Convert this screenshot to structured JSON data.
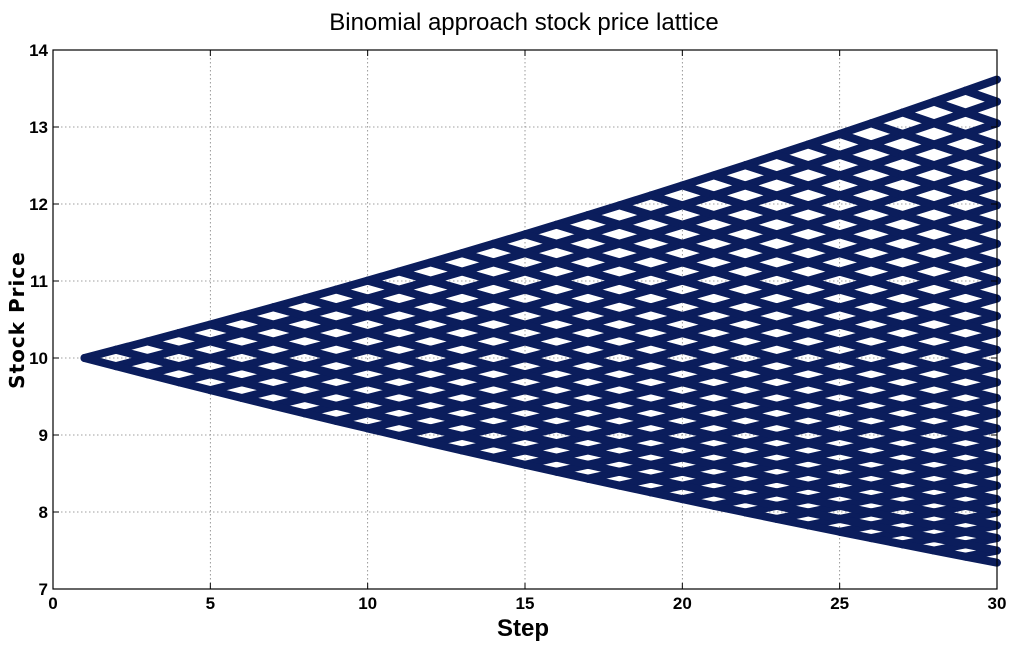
{
  "chart_data": {
    "type": "line",
    "title": "Binomial approach stock price lattice",
    "xlabel": "Step",
    "ylabel": "Stock Price",
    "xlim": [
      0,
      30
    ],
    "ylim": [
      7,
      14
    ],
    "xticks": [
      "0",
      "5",
      "10",
      "15",
      "20",
      "25",
      "30"
    ],
    "yticks": [
      "7",
      "8",
      "9",
      "10",
      "11",
      "12",
      "13",
      "14"
    ],
    "grid": true,
    "lattice": {
      "initial_price": 10,
      "first_step": 1,
      "last_step": 30,
      "up_factor": 1.0107,
      "down_factor": 0.9894
    },
    "colors": {
      "line": "#0b1d5c",
      "grid": "#808080",
      "axes": "#000000"
    }
  }
}
